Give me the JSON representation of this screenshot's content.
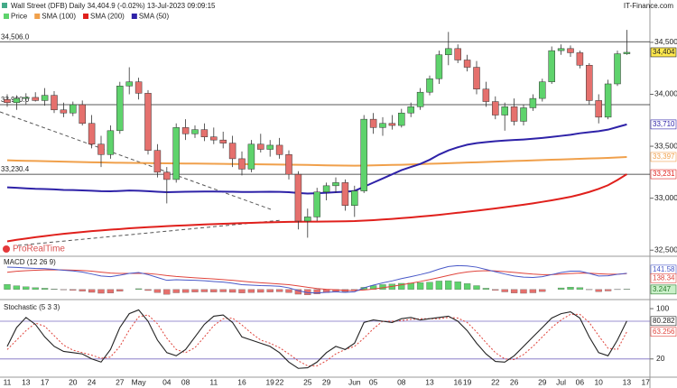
{
  "header": {
    "title": "Wall Street (DFB) Daily 34,404.9 (-0.02%) 13-Jul-2023 09:09:15",
    "source": "IT-Finance.com",
    "watermark": "ProRealTime"
  },
  "chart_data": [
    {
      "type": "candlestick",
      "name": "Price",
      "up_color": "#5ed36c",
      "down_color": "#e5706d",
      "categories": [
        "11",
        null,
        "13",
        null,
        "17",
        null,
        null,
        "20",
        null,
        "24",
        null,
        null,
        "27",
        null,
        "May",
        null,
        null,
        "04",
        null,
        "08",
        null,
        null,
        "11",
        null,
        null,
        "16",
        null,
        null,
        "19",
        "22",
        null,
        null,
        "25",
        null,
        "29",
        null,
        null,
        "Jun",
        null,
        "05",
        null,
        null,
        "08",
        null,
        null,
        "13",
        null,
        null,
        "16",
        "19",
        null,
        null,
        "22",
        null,
        "26",
        null,
        null,
        "29",
        null,
        "Jul",
        null,
        "06",
        null,
        "10",
        null,
        null,
        "13",
        null,
        "17"
      ],
      "open": [
        33950,
        33920,
        33960,
        33970,
        33940,
        33990,
        33850,
        33820,
        33900,
        33720,
        33520,
        33420,
        33650,
        34080,
        34120,
        34010,
        33460,
        33250,
        33180,
        33680,
        33620,
        33660,
        33590,
        33560,
        33530,
        33380,
        33280,
        33520,
        33470,
        33510,
        33420,
        33230,
        32780,
        32820,
        33060,
        33120,
        33150,
        32930,
        33070,
        33760,
        33680,
        33720,
        33700,
        33820,
        33880,
        34020,
        34150,
        34380,
        34440,
        34330,
        34260,
        34050,
        33930,
        33800,
        33880,
        33740,
        33870,
        33960,
        34120,
        34420,
        34440,
        34400,
        34280,
        33940,
        33780,
        34100,
        34390,
        null,
        null
      ],
      "high": [
        34000,
        33990,
        34010,
        34020,
        34060,
        34030,
        33920,
        33930,
        33940,
        33800,
        33600,
        33700,
        34120,
        34260,
        34160,
        34040,
        33520,
        33300,
        33720,
        33760,
        33700,
        33720,
        33680,
        33640,
        33600,
        33450,
        33560,
        33620,
        33560,
        33580,
        33460,
        33260,
        32900,
        33100,
        33150,
        33200,
        33180,
        33120,
        33800,
        33820,
        33780,
        33800,
        33860,
        33920,
        34060,
        34180,
        34420,
        34600,
        34480,
        34380,
        34320,
        34120,
        33980,
        33920,
        33960,
        33900,
        34000,
        34150,
        34460,
        34480,
        34470,
        34420,
        34300,
        34000,
        34140,
        34420,
        34620,
        null,
        null
      ],
      "low": [
        33880,
        33850,
        33900,
        33930,
        33890,
        33820,
        33780,
        33790,
        33700,
        33480,
        33300,
        33380,
        33620,
        34000,
        33950,
        33420,
        33200,
        32950,
        33150,
        33560,
        33580,
        33550,
        33520,
        33480,
        33300,
        33220,
        33250,
        33440,
        33400,
        33380,
        33180,
        32700,
        32620,
        32780,
        32980,
        33050,
        32880,
        32820,
        33050,
        33620,
        33600,
        33660,
        33680,
        33780,
        33850,
        33990,
        34100,
        34280,
        34300,
        34220,
        34000,
        33880,
        33760,
        33650,
        33700,
        33700,
        33840,
        33930,
        34100,
        34380,
        34360,
        34250,
        33900,
        33720,
        33760,
        34080,
        34380,
        null,
        null
      ],
      "close": [
        33920,
        33960,
        33970,
        33940,
        33990,
        33850,
        33820,
        33900,
        33720,
        33520,
        33420,
        33650,
        34080,
        34120,
        34010,
        33460,
        33250,
        33180,
        33680,
        33620,
        33660,
        33590,
        33560,
        33530,
        33380,
        33280,
        33520,
        33470,
        33510,
        33420,
        33230,
        32780,
        32820,
        33060,
        33120,
        33150,
        32930,
        33070,
        33760,
        33680,
        33720,
        33700,
        33820,
        33880,
        34020,
        34150,
        34380,
        34440,
        34330,
        34260,
        34050,
        33930,
        33800,
        33880,
        33740,
        33870,
        33960,
        34120,
        34420,
        34440,
        34400,
        34280,
        33940,
        33780,
        34100,
        34390,
        34404,
        null,
        null
      ],
      "close_label": "34,404",
      "series": [
        {
          "name": "SMA (100)",
          "color": "#f0a04b",
          "last_label": "33,397",
          "values": [
            33365,
            33362,
            33360,
            33358,
            33356,
            33354,
            33352,
            33350,
            33348,
            33346,
            33344,
            33342,
            33341,
            33340,
            33339,
            33338,
            33337,
            33336,
            33335,
            33334,
            33333,
            33332,
            33331,
            33330,
            33329,
            33328,
            33327,
            33326,
            33325,
            33324,
            33323,
            33322,
            33320,
            33318,
            33316,
            33315,
            33314,
            33313,
            33314,
            33316,
            33318,
            33320,
            33322,
            33325,
            33328,
            33331,
            33334,
            33337,
            33340,
            33343,
            33346,
            33349,
            33352,
            33355,
            33358,
            33361,
            33364,
            33367,
            33370,
            33373,
            33376,
            33379,
            33382,
            33385,
            33388,
            33392,
            33397,
            null,
            null
          ]
        },
        {
          "name": "SMA (200)",
          "color": "#e0201c",
          "last_label": "33,231",
          "values": [
            32585,
            32600,
            32612,
            32625,
            32636,
            32647,
            32657,
            32666,
            32675,
            32683,
            32690,
            32697,
            32703,
            32710,
            32716,
            32721,
            32726,
            32731,
            32735,
            32739,
            32743,
            32747,
            32751,
            32754,
            32757,
            32760,
            32763,
            32766,
            32768,
            32770,
            32772,
            32773,
            32774,
            32775,
            32776,
            32777,
            32778,
            32780,
            32784,
            32789,
            32795,
            32801,
            32808,
            32815,
            32823,
            32831,
            32840,
            32850,
            32860,
            32870,
            32880,
            32891,
            32902,
            32913,
            32925,
            32937,
            32950,
            32965,
            32980,
            32996,
            33013,
            33035,
            33060,
            33090,
            33125,
            33175,
            33231,
            null,
            null
          ]
        },
        {
          "name": "SMA (50)",
          "color": "#2e22a8",
          "last_label": "33,710",
          "values": [
            33105,
            33100,
            33095,
            33090,
            33088,
            33085,
            33080,
            33078,
            33075,
            33072,
            33068,
            33066,
            33070,
            33074,
            33072,
            33068,
            33062,
            33058,
            33060,
            33062,
            33063,
            33064,
            33064,
            33063,
            33062,
            33060,
            33060,
            33061,
            33062,
            33061,
            33058,
            33050,
            33045,
            33048,
            33052,
            33058,
            33062,
            33070,
            33110,
            33150,
            33190,
            33230,
            33270,
            33300,
            33330,
            33370,
            33420,
            33460,
            33490,
            33515,
            33530,
            33540,
            33548,
            33555,
            33560,
            33565,
            33572,
            33580,
            33590,
            33600,
            33610,
            33625,
            33635,
            33645,
            33660,
            33685,
            33710,
            null,
            null
          ]
        }
      ],
      "levels": [
        {
          "value": 34506,
          "label": "34,506.0"
        },
        {
          "value": 33900,
          "label": "33,900.0"
        },
        {
          "value": 33230.4,
          "label": "33,230.4"
        }
      ],
      "ylim": [
        32450,
        34890
      ],
      "yticks": [
        {
          "value": 34500,
          "label": "34,500"
        },
        {
          "value": 34000,
          "label": "34,000"
        },
        {
          "value": 33500,
          "label": "33,500"
        },
        {
          "value": 33000,
          "label": "33,000"
        },
        {
          "value": 32500,
          "label": "32,500"
        }
      ]
    },
    {
      "type": "macd",
      "title": "MACD (12 26 9)",
      "ylim": [
        -80,
        282
      ],
      "macd": {
        "color": "#4858c8",
        "last_label": "141.58",
        "values": [
          195,
          192,
          188,
          184,
          182,
          176,
          168,
          162,
          152,
          135,
          118,
          112,
          125,
          140,
          148,
          130,
          105,
          80,
          85,
          82,
          80,
          76,
          70,
          65,
          55,
          42,
          38,
          34,
          32,
          28,
          15,
          -10,
          -28,
          -30,
          -25,
          -20,
          -25,
          -20,
          15,
          38,
          58,
          75,
          95,
          112,
          130,
          150,
          178,
          200,
          208,
          205,
          195,
          175,
          155,
          135,
          118,
          108,
          105,
          112,
          130,
          148,
          160,
          160,
          140,
          118,
          120,
          132,
          141.58,
          null,
          null
        ]
      },
      "signal": {
        "color": "#e0443c",
        "last_label": "138.34",
        "values": [
          150,
          159,
          164,
          168,
          171,
          172,
          171,
          169,
          166,
          160,
          151,
          143,
          140,
          140,
          141,
          139,
          132,
          122,
          114,
          108,
          102,
          97,
          92,
          86,
          80,
          72,
          65,
          59,
          54,
          48,
          42,
          31,
          19,
          9,
          2,
          -2,
          -7,
          -9,
          -4,
          4,
          15,
          27,
          41,
          55,
          70,
          86,
          104,
          123,
          140,
          153,
          161,
          164,
          162,
          156,
          149,
          141,
          134,
          130,
          130,
          134,
          139,
          143,
          142,
          137,
          133,
          133,
          138.34,
          null,
          null
        ]
      },
      "histogram": {
        "up_color": "#5ed36c",
        "down_color": "#e5706d",
        "last_label": "3.247",
        "values": [
          45,
          33,
          24,
          16,
          11,
          4,
          -3,
          -7,
          -14,
          -25,
          -33,
          -31,
          -15,
          0,
          7,
          -9,
          -27,
          -42,
          -29,
          -26,
          -22,
          -21,
          -22,
          -21,
          -25,
          -30,
          -27,
          -25,
          -22,
          -20,
          -27,
          -41,
          -47,
          -39,
          -27,
          -18,
          -18,
          -11,
          19,
          34,
          43,
          48,
          54,
          57,
          60,
          64,
          74,
          77,
          68,
          52,
          34,
          11,
          -7,
          -21,
          -31,
          -33,
          -29,
          -18,
          0,
          14,
          21,
          17,
          -2,
          -19,
          -13,
          -1,
          3.247,
          null,
          null
        ]
      }
    },
    {
      "type": "stochastic",
      "title": "Stochastic (5 3 3)",
      "ylim": [
        -9,
        113
      ],
      "yticks": [
        100,
        20
      ],
      "levels": [
        80,
        20
      ],
      "k": {
        "color": "#222222",
        "last_label": "80.282",
        "values": [
          40,
          70,
          86,
          75,
          55,
          40,
          32,
          30,
          28,
          20,
          15,
          35,
          70,
          92,
          98,
          80,
          50,
          30,
          25,
          35,
          55,
          75,
          88,
          90,
          78,
          55,
          50,
          45,
          40,
          30,
          15,
          5,
          6,
          15,
          30,
          40,
          35,
          45,
          78,
          82,
          80,
          78,
          84,
          86,
          82,
          84,
          86,
          88,
          80,
          65,
          45,
          28,
          16,
          15,
          25,
          40,
          55,
          70,
          85,
          92,
          95,
          85,
          55,
          30,
          25,
          50,
          80.282,
          null,
          null
        ]
      },
      "d": {
        "color": "#e0443c",
        "last_label": "63.256",
        "values": [
          35,
          50,
          65,
          77,
          72,
          57,
          42,
          34,
          30,
          26,
          21,
          23,
          40,
          66,
          87,
          90,
          76,
          53,
          35,
          30,
          38,
          55,
          73,
          84,
          85,
          74,
          61,
          50,
          45,
          38,
          28,
          17,
          9,
          9,
          17,
          28,
          35,
          40,
          53,
          68,
          80,
          80,
          81,
          83,
          84,
          84,
          84,
          86,
          85,
          78,
          63,
          46,
          30,
          20,
          19,
          27,
          40,
          55,
          70,
          82,
          91,
          91,
          78,
          57,
          37,
          35,
          63.256,
          null,
          null
        ]
      }
    }
  ]
}
